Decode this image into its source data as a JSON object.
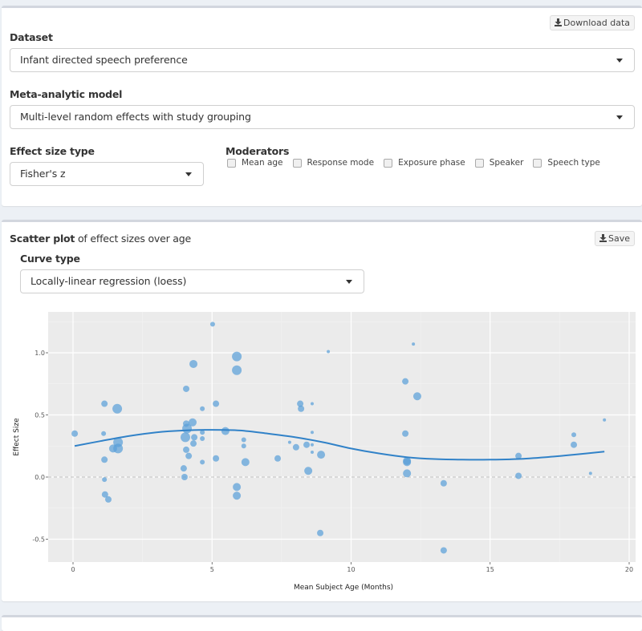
{
  "controls": {
    "download_label": "Download data",
    "dataset": {
      "label": "Dataset",
      "value": "Infant directed speech preference"
    },
    "model": {
      "label": "Meta-analytic model",
      "value": "Multi-level random effects with study grouping"
    },
    "effect_size_type": {
      "label": "Effect size type",
      "value": "Fisher's z"
    },
    "moderators": {
      "label": "Moderators",
      "options": [
        {
          "label": "Mean age",
          "checked": false
        },
        {
          "label": "Response mode",
          "checked": false
        },
        {
          "label": "Exposure phase",
          "checked": false
        },
        {
          "label": "Speaker",
          "checked": false
        },
        {
          "label": "Speech type",
          "checked": false
        }
      ]
    }
  },
  "scatter_panel": {
    "title_bold": "Scatter plot",
    "title_rest": " of effect sizes over age",
    "save_label": "Save",
    "curve_type": {
      "label": "Curve type",
      "value": "Locally-linear regression (loess)"
    }
  },
  "colors": {
    "point": "#5a9fd8",
    "curve": "#3182c8",
    "panel_bg": "#ebebeb",
    "page_bg": "#ecf0f5"
  },
  "chart_data": {
    "type": "scatter",
    "title": "",
    "xlabel": "Mean Subject Age (Months)",
    "ylabel": "Effect Size",
    "xlim": [
      -0.9,
      20.2
    ],
    "ylim": [
      -0.69,
      1.32
    ],
    "x_ticks": [
      0,
      5,
      10,
      15,
      20
    ],
    "y_ticks": [
      -0.5,
      0.0,
      0.5,
      1.0
    ],
    "y_tick_labels": [
      "-0.5",
      "0.0",
      "0.5",
      "1.0"
    ],
    "grid": true,
    "reference_line": {
      "y": 0,
      "style": "dashed"
    },
    "points": [
      {
        "x": 0.06,
        "y": 0.35,
        "size": 4
      },
      {
        "x": 1.13,
        "y": 0.59,
        "size": 4
      },
      {
        "x": 1.1,
        "y": 0.35,
        "size": 3
      },
      {
        "x": 1.59,
        "y": 0.55,
        "size": 6
      },
      {
        "x": 1.62,
        "y": 0.28,
        "size": 6
      },
      {
        "x": 1.44,
        "y": 0.23,
        "size": 5
      },
      {
        "x": 1.62,
        "y": 0.23,
        "size": 6
      },
      {
        "x": 1.13,
        "y": 0.14,
        "size": 4
      },
      {
        "x": 1.13,
        "y": -0.02,
        "size": 3
      },
      {
        "x": 1.15,
        "y": -0.14,
        "size": 4
      },
      {
        "x": 1.27,
        "y": -0.18,
        "size": 4
      },
      {
        "x": 4.33,
        "y": 0.91,
        "size": 5
      },
      {
        "x": 4.07,
        "y": 0.71,
        "size": 4
      },
      {
        "x": 5.02,
        "y": 1.23,
        "size": 3
      },
      {
        "x": 5.89,
        "y": 0.97,
        "size": 6
      },
      {
        "x": 5.89,
        "y": 0.86,
        "size": 6
      },
      {
        "x": 4.65,
        "y": 0.55,
        "size": 3
      },
      {
        "x": 5.14,
        "y": 0.59,
        "size": 4
      },
      {
        "x": 4.07,
        "y": 0.43,
        "size": 4
      },
      {
        "x": 4.3,
        "y": 0.44,
        "size": 5
      },
      {
        "x": 4.1,
        "y": 0.39,
        "size": 6
      },
      {
        "x": 4.04,
        "y": 0.32,
        "size": 6
      },
      {
        "x": 4.36,
        "y": 0.32,
        "size": 4
      },
      {
        "x": 4.33,
        "y": 0.27,
        "size": 4
      },
      {
        "x": 4.65,
        "y": 0.36,
        "size": 3
      },
      {
        "x": 4.65,
        "y": 0.31,
        "size": 3
      },
      {
        "x": 5.48,
        "y": 0.37,
        "size": 5
      },
      {
        "x": 6.14,
        "y": 0.3,
        "size": 3
      },
      {
        "x": 6.14,
        "y": 0.25,
        "size": 3
      },
      {
        "x": 4.07,
        "y": 0.22,
        "size": 4
      },
      {
        "x": 4.16,
        "y": 0.17,
        "size": 4
      },
      {
        "x": 4.65,
        "y": 0.12,
        "size": 3
      },
      {
        "x": 5.14,
        "y": 0.15,
        "size": 4
      },
      {
        "x": 6.2,
        "y": 0.12,
        "size": 5
      },
      {
        "x": 3.98,
        "y": 0.07,
        "size": 4
      },
      {
        "x": 4.01,
        "y": 0.0,
        "size": 4
      },
      {
        "x": 5.89,
        "y": -0.08,
        "size": 5
      },
      {
        "x": 5.89,
        "y": -0.15,
        "size": 5
      },
      {
        "x": 7.36,
        "y": 0.15,
        "size": 4
      },
      {
        "x": 7.79,
        "y": 0.28,
        "size": 2
      },
      {
        "x": 8.02,
        "y": 0.24,
        "size": 4
      },
      {
        "x": 8.17,
        "y": 0.59,
        "size": 4
      },
      {
        "x": 8.2,
        "y": 0.55,
        "size": 4
      },
      {
        "x": 8.4,
        "y": 0.26,
        "size": 4
      },
      {
        "x": 8.6,
        "y": 0.59,
        "size": 2
      },
      {
        "x": 8.6,
        "y": 0.36,
        "size": 2
      },
      {
        "x": 8.6,
        "y": 0.26,
        "size": 2
      },
      {
        "x": 8.6,
        "y": 0.2,
        "size": 2
      },
      {
        "x": 8.92,
        "y": 0.18,
        "size": 5
      },
      {
        "x": 8.46,
        "y": 0.05,
        "size": 5
      },
      {
        "x": 8.89,
        "y": -0.45,
        "size": 4
      },
      {
        "x": 9.18,
        "y": 1.01,
        "size": 2
      },
      {
        "x": 11.95,
        "y": 0.77,
        "size": 4
      },
      {
        "x": 11.95,
        "y": 0.35,
        "size": 4
      },
      {
        "x": 12.01,
        "y": 0.13,
        "size": 5
      },
      {
        "x": 12.01,
        "y": 0.12,
        "size": 5
      },
      {
        "x": 12.01,
        "y": 0.03,
        "size": 5
      },
      {
        "x": 12.24,
        "y": 1.07,
        "size": 2
      },
      {
        "x": 12.38,
        "y": 0.65,
        "size": 5
      },
      {
        "x": 13.33,
        "y": -0.05,
        "size": 4
      },
      {
        "x": 13.33,
        "y": -0.59,
        "size": 4
      },
      {
        "x": 16.02,
        "y": 0.17,
        "size": 4
      },
      {
        "x": 16.02,
        "y": 0.01,
        "size": 4
      },
      {
        "x": 18.01,
        "y": 0.34,
        "size": 3
      },
      {
        "x": 18.01,
        "y": 0.26,
        "size": 4
      },
      {
        "x": 18.61,
        "y": 0.03,
        "size": 2
      },
      {
        "x": 19.11,
        "y": 0.46,
        "size": 2
      }
    ],
    "curve": {
      "name": "loess",
      "x": [
        0.06,
        1,
        2,
        3,
        4,
        5,
        6,
        7,
        8,
        9,
        10,
        11,
        12,
        13,
        14,
        15,
        16,
        17,
        18,
        19.11
      ],
      "y": [
        0.25,
        0.29,
        0.33,
        0.36,
        0.375,
        0.38,
        0.375,
        0.35,
        0.32,
        0.28,
        0.23,
        0.19,
        0.16,
        0.145,
        0.14,
        0.14,
        0.145,
        0.16,
        0.18,
        0.205
      ]
    }
  }
}
